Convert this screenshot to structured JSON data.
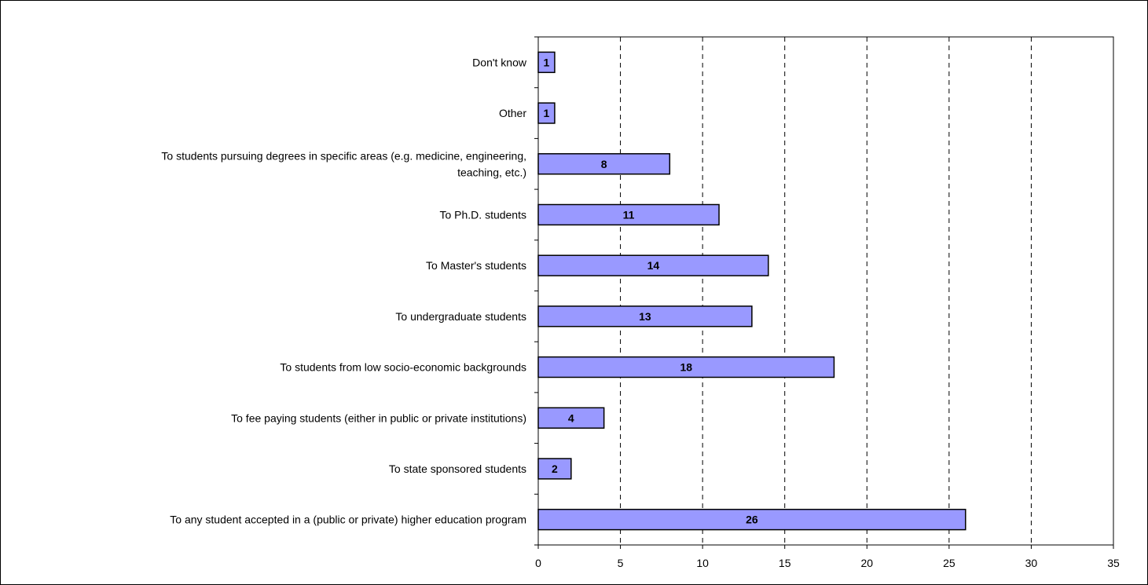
{
  "chart_data": {
    "type": "bar",
    "orientation": "horizontal",
    "categories": [
      "Don't know",
      "Other",
      "To students pursuing degrees in specific areas (e.g. medicine, engineering, teaching, etc.)",
      "To Ph.D. students",
      "To Master's students",
      "To undergraduate students",
      "To students from low socio-economic backgrounds",
      "To fee paying students (either in public or private institutions)",
      "To state sponsored students",
      "To any student accepted in a (public or private) higher education program"
    ],
    "category_lines": [
      [
        "Don't know"
      ],
      [
        "Other"
      ],
      [
        "To students pursuing degrees in specific areas (e.g. medicine, engineering,",
        "teaching, etc.)"
      ],
      [
        "To Ph.D. students"
      ],
      [
        "To Master's students"
      ],
      [
        "To undergraduate students"
      ],
      [
        "To students from low socio-economic backgrounds"
      ],
      [
        "To fee paying students (either in public or private institutions)"
      ],
      [
        "To state sponsored students"
      ],
      [
        "To any student accepted in a (public or private) higher education program"
      ]
    ],
    "values": [
      1,
      1,
      8,
      11,
      14,
      13,
      18,
      4,
      2,
      26
    ],
    "xlim": [
      0,
      35
    ],
    "xticks": [
      0,
      5,
      10,
      15,
      20,
      25,
      30,
      35
    ],
    "grid": "vertical-dashed",
    "bar_color": "#9999ff",
    "title": "",
    "xlabel": "",
    "ylabel": ""
  }
}
